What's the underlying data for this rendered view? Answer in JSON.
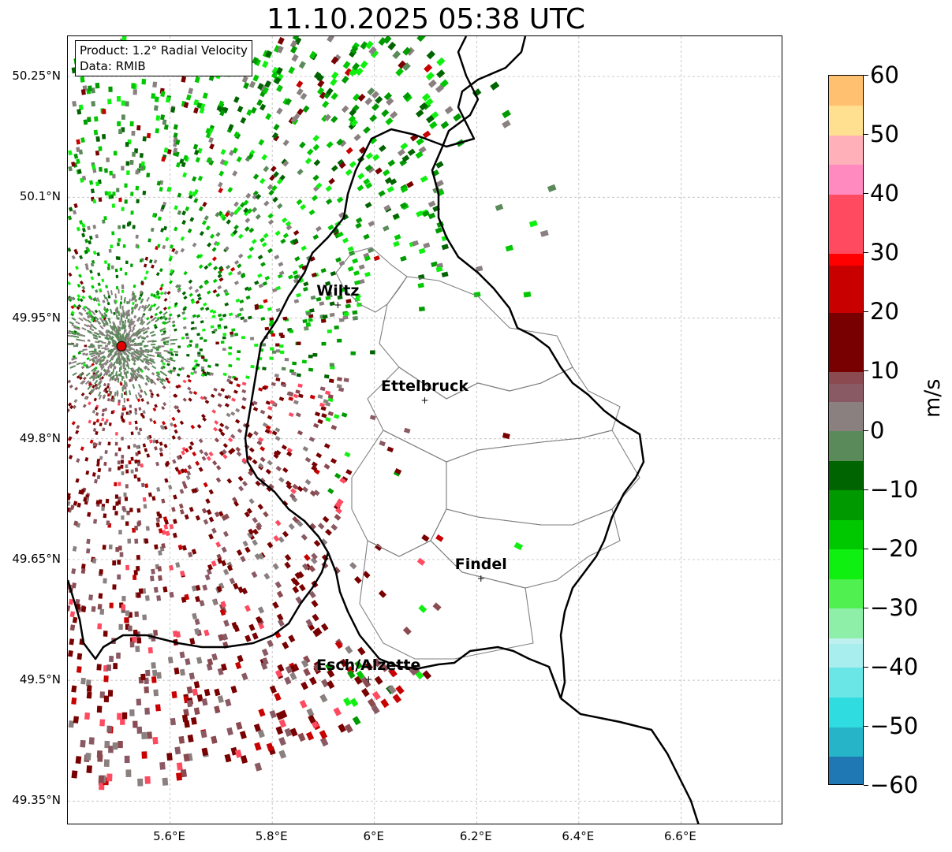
{
  "title": "11.10.2025 05:38 UTC",
  "info": {
    "product": "Product: 1.2° Radial Velocity",
    "data": "Data: RMIB"
  },
  "map": {
    "lon_range": [
      5.4,
      6.8
    ],
    "lat_range": [
      49.32,
      50.3
    ],
    "lon_ticks": [
      {
        "value": 5.6,
        "label": "5.6°E"
      },
      {
        "value": 5.8,
        "label": "5.8°E"
      },
      {
        "value": 6.0,
        "label": "6°E"
      },
      {
        "value": 6.2,
        "label": "6.2°E"
      },
      {
        "value": 6.4,
        "label": "6.4°E"
      },
      {
        "value": 6.6,
        "label": "6.6°E"
      }
    ],
    "lat_ticks": [
      {
        "value": 50.25,
        "label": "50.25°N"
      },
      {
        "value": 50.1,
        "label": "50.1°N"
      },
      {
        "value": 49.95,
        "label": "49.95°N"
      },
      {
        "value": 49.8,
        "label": "49.8°N"
      },
      {
        "value": 49.65,
        "label": "49.65°N"
      },
      {
        "value": 49.5,
        "label": "49.5°N"
      },
      {
        "value": 49.35,
        "label": "49.35°N"
      }
    ],
    "radar_site": {
      "lon": 5.505,
      "lat": 49.915
    },
    "cities": [
      {
        "name": "Wiltz",
        "lon": 5.93,
        "lat": 49.965
      },
      {
        "name": "Ettelbruck",
        "lon": 6.1,
        "lat": 49.847
      },
      {
        "name": "Findel",
        "lon": 6.21,
        "lat": 49.625
      },
      {
        "name": "Esch/Alzette",
        "lon": 5.99,
        "lat": 49.5
      }
    ],
    "grid_color": "#b0b0b0",
    "border_color": "#000000",
    "district_color": "#808080"
  },
  "colorbar": {
    "label": "m/s",
    "range": [
      -60,
      60
    ],
    "ticks": [
      {
        "value": 60,
        "label": "60"
      },
      {
        "value": 50,
        "label": "50"
      },
      {
        "value": 40,
        "label": "40"
      },
      {
        "value": 30,
        "label": "30"
      },
      {
        "value": 20,
        "label": "20"
      },
      {
        "value": 10,
        "label": "10"
      },
      {
        "value": 0,
        "label": "0"
      },
      {
        "value": -10,
        "label": "−10"
      },
      {
        "value": -20,
        "label": "−20"
      },
      {
        "value": -30,
        "label": "−30"
      },
      {
        "value": -40,
        "label": "−40"
      },
      {
        "value": -50,
        "label": "−50"
      },
      {
        "value": -60,
        "label": "−60"
      }
    ],
    "stops": [
      {
        "value": -60,
        "color": "#1f78b4"
      },
      {
        "value": -55,
        "color": "#26b5c8"
      },
      {
        "value": -50,
        "color": "#2fdde0"
      },
      {
        "value": -45,
        "color": "#6ae6e6"
      },
      {
        "value": -40,
        "color": "#a8eeee"
      },
      {
        "value": -36,
        "color": "#bff0f0"
      },
      {
        "value": -35,
        "color": "#8ef0a8"
      },
      {
        "value": -30,
        "color": "#50f050"
      },
      {
        "value": -25,
        "color": "#10f010"
      },
      {
        "value": -20,
        "color": "#00c800"
      },
      {
        "value": -15,
        "color": "#009a00"
      },
      {
        "value": -10,
        "color": "#006400"
      },
      {
        "value": -5,
        "color": "#5a8a5a"
      },
      {
        "value": 0,
        "color": "#8a8080"
      },
      {
        "value": 5,
        "color": "#8a5a64"
      },
      {
        "value": 8,
        "color": "#8a4a50"
      },
      {
        "value": 10,
        "color": "#780000"
      },
      {
        "value": 20,
        "color": "#c80000"
      },
      {
        "value": 28,
        "color": "#ff0000"
      },
      {
        "value": 30,
        "color": "#ff4a60"
      },
      {
        "value": 40,
        "color": "#ff8ac0"
      },
      {
        "value": 45,
        "color": "#ffb0b8"
      },
      {
        "value": 50,
        "color": "#ffe090"
      },
      {
        "value": 55,
        "color": "#ffc070"
      },
      {
        "value": 60,
        "color": "#ff9a50"
      }
    ]
  }
}
